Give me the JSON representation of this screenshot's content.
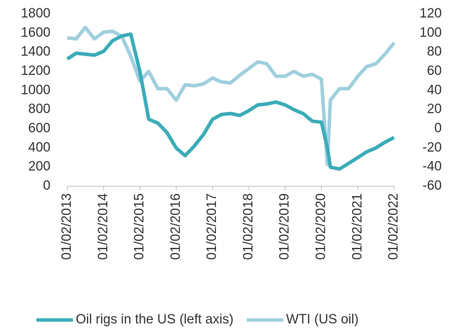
{
  "chart_data": {
    "type": "line",
    "x": [
      "2013-02-01",
      "2013-05-01",
      "2013-08-01",
      "2013-11-01",
      "2014-02-01",
      "2014-05-01",
      "2014-08-01",
      "2014-11-01",
      "2015-02-01",
      "2015-05-01",
      "2015-08-01",
      "2015-11-01",
      "2016-02-01",
      "2016-05-01",
      "2016-08-01",
      "2016-11-01",
      "2017-02-01",
      "2017-05-01",
      "2017-08-01",
      "2017-11-01",
      "2018-02-01",
      "2018-05-01",
      "2018-08-01",
      "2018-11-01",
      "2019-02-01",
      "2019-05-01",
      "2019-08-01",
      "2019-11-01",
      "2020-02-01",
      "2020-04-01",
      "2020-05-01",
      "2020-08-01",
      "2020-11-01",
      "2021-02-01",
      "2021-05-01",
      "2021-08-01",
      "2021-11-01",
      "2022-02-01"
    ],
    "series": [
      {
        "name": "Oil rigs in the US (left axis)",
        "color": "#3aacb8",
        "axis": "y",
        "values": [
          1330,
          1390,
          1380,
          1370,
          1410,
          1520,
          1570,
          1590,
          1200,
          700,
          660,
          560,
          400,
          320,
          420,
          540,
          700,
          750,
          760,
          740,
          790,
          850,
          860,
          880,
          850,
          800,
          760,
          680,
          670,
          400,
          200,
          180,
          240,
          300,
          360,
          400,
          460,
          510
        ]
      },
      {
        "name": "WTI (US oil)",
        "color": "#9fcfdd",
        "axis": "y2",
        "values": [
          95,
          94,
          106,
          94,
          101,
          102,
          97,
          76,
          50,
          60,
          42,
          42,
          30,
          46,
          45,
          47,
          53,
          49,
          48,
          56,
          63,
          70,
          68,
          55,
          55,
          60,
          55,
          57,
          52,
          -37,
          30,
          42,
          42,
          55,
          65,
          68,
          78,
          90
        ]
      }
    ],
    "xlim": [
      "2013-02-01",
      "2022-02-01"
    ],
    "xticks": [
      {
        "value": "2013-02-01",
        "label": "01/02/2013"
      },
      {
        "value": "2014-02-01",
        "label": "01/02/2014"
      },
      {
        "value": "2015-02-01",
        "label": "01/02/2015"
      },
      {
        "value": "2016-02-01",
        "label": "01/02/2016"
      },
      {
        "value": "2017-02-01",
        "label": "01/02/2017"
      },
      {
        "value": "2018-02-01",
        "label": "01/02/2018"
      },
      {
        "value": "2019-02-01",
        "label": "01/02/2019"
      },
      {
        "value": "2020-02-01",
        "label": "01/02/2020"
      },
      {
        "value": "2021-02-01",
        "label": "01/02/2021"
      },
      {
        "value": "2022-02-01",
        "label": "01/02/2022"
      }
    ],
    "ylim": [
      0,
      1800
    ],
    "yticks": [
      0,
      200,
      400,
      600,
      800,
      1000,
      1200,
      1400,
      1600,
      1800
    ],
    "y2lim": [
      -60,
      120
    ],
    "y2ticks": [
      -60,
      -40,
      -20,
      0,
      20,
      40,
      60,
      80,
      100,
      120
    ],
    "grid": false,
    "legend": "bottom"
  }
}
